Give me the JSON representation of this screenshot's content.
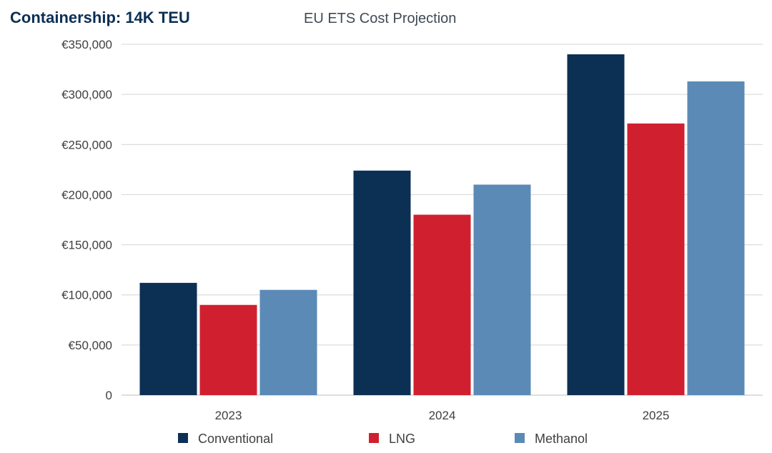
{
  "header": {
    "vessel_title": "Containership: 14K TEU"
  },
  "chart_data": {
    "type": "bar",
    "title": "EU ETS Cost Projection",
    "xlabel": "",
    "ylabel": "",
    "categories": [
      "2023",
      "2024",
      "2025"
    ],
    "series": [
      {
        "name": "Conventional",
        "color": "#0c3054",
        "values": [
          112000,
          224000,
          340000
        ]
      },
      {
        "name": "LNG",
        "color": "#d0202f",
        "values": [
          90000,
          180000,
          271000
        ]
      },
      {
        "name": "Methanol",
        "color": "#5b8ab6",
        "values": [
          105000,
          210000,
          313000
        ]
      }
    ],
    "ylim": [
      0,
      350000
    ],
    "yticks": [
      0,
      50000,
      100000,
      150000,
      200000,
      250000,
      300000,
      350000
    ],
    "ytick_labels": [
      "0",
      "€50,000",
      "€100,000",
      "€150,000",
      "€200,000",
      "€250,000",
      "€300,000",
      "€350,000"
    ],
    "grid": true,
    "legend_position": "bottom"
  }
}
